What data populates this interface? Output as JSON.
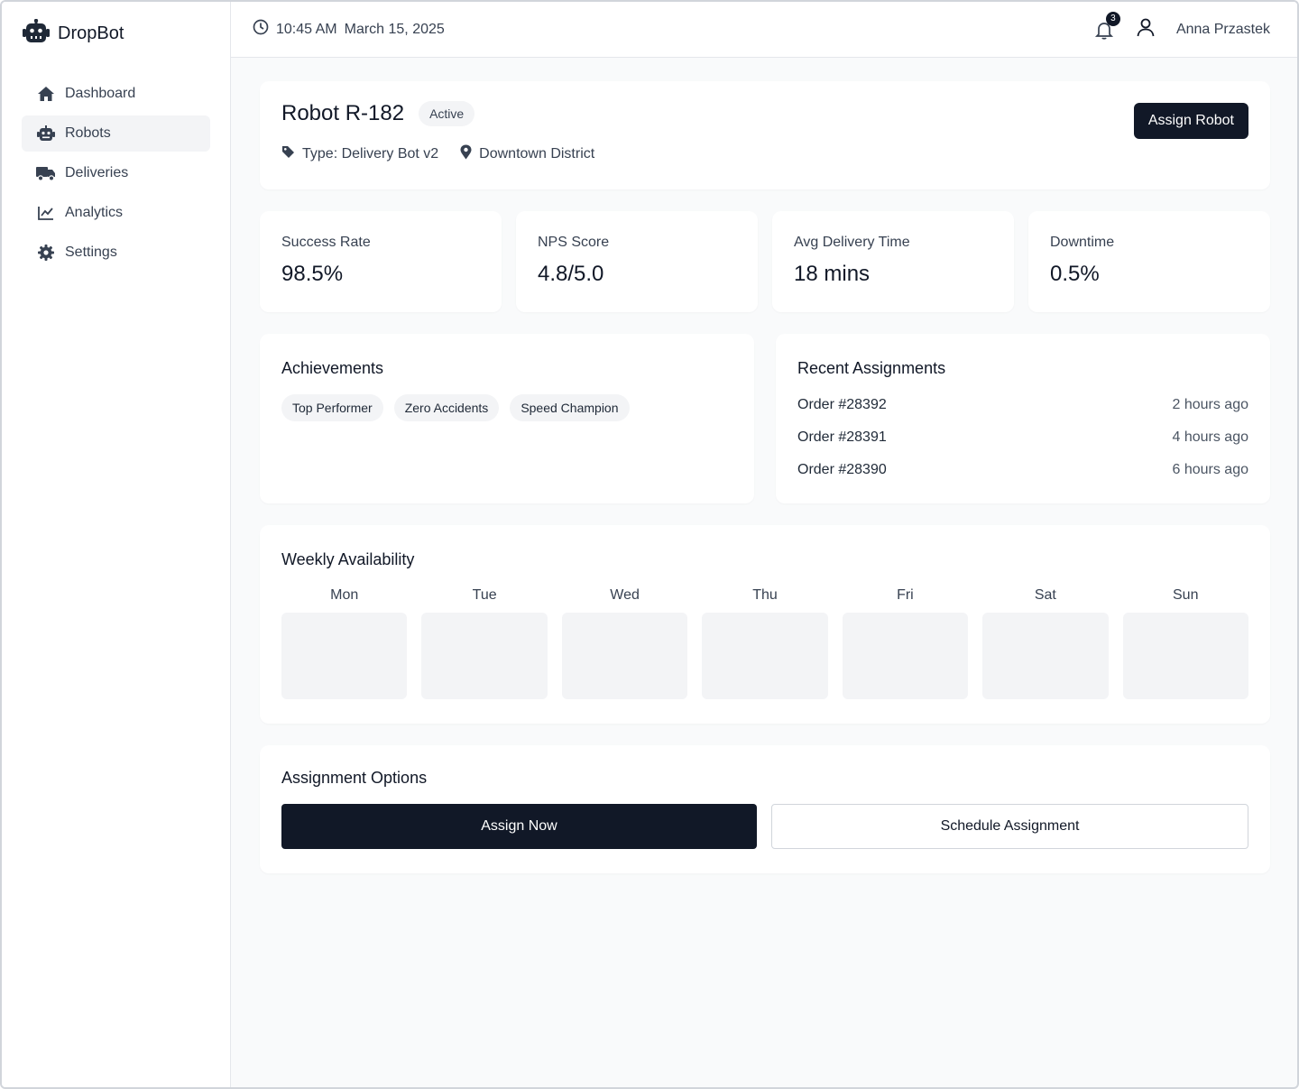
{
  "app": {
    "name": "DropBot",
    "logo_icon": "robot-icon"
  },
  "sidebar": {
    "items": [
      {
        "label": "Dashboard",
        "icon": "home-icon",
        "active": false
      },
      {
        "label": "Robots",
        "icon": "robot-icon",
        "active": true
      },
      {
        "label": "Deliveries",
        "icon": "truck-icon",
        "active": false
      },
      {
        "label": "Analytics",
        "icon": "chart-line-icon",
        "active": false
      },
      {
        "label": "Settings",
        "icon": "gear-icon",
        "active": false
      }
    ]
  },
  "topbar": {
    "time": "10:45 AM",
    "date": "March 15, 2025",
    "notification_count": "3",
    "user_name": "Anna Przastek"
  },
  "robot": {
    "title": "Robot R-182",
    "status": "Active",
    "type": "Type: Delivery Bot v2",
    "location": "Downtown District",
    "assign_button": "Assign Robot"
  },
  "stats": [
    {
      "label": "Success Rate",
      "value": "98.5%"
    },
    {
      "label": "NPS Score",
      "value": "4.8/5.0"
    },
    {
      "label": "Avg Delivery Time",
      "value": "18 mins"
    },
    {
      "label": "Downtime",
      "value": "0.5%"
    }
  ],
  "achievements": {
    "title": "Achievements",
    "items": [
      "Top Performer",
      "Zero Accidents",
      "Speed Champion"
    ]
  },
  "recent_assignments": {
    "title": "Recent Assignments",
    "items": [
      {
        "order": "Order #28392",
        "time": "2 hours ago"
      },
      {
        "order": "Order #28391",
        "time": "4 hours ago"
      },
      {
        "order": "Order #28390",
        "time": "6 hours ago"
      }
    ]
  },
  "availability": {
    "title": "Weekly Availability",
    "days": [
      "Mon",
      "Tue",
      "Wed",
      "Thu",
      "Fri",
      "Sat",
      "Sun"
    ]
  },
  "assignment_options": {
    "title": "Assignment Options",
    "assign_now": "Assign Now",
    "schedule": "Schedule Assignment"
  },
  "colors": {
    "primary_dark": "#111827",
    "chip_bg": "#f3f4f6",
    "page_bg": "#f9fafb"
  }
}
